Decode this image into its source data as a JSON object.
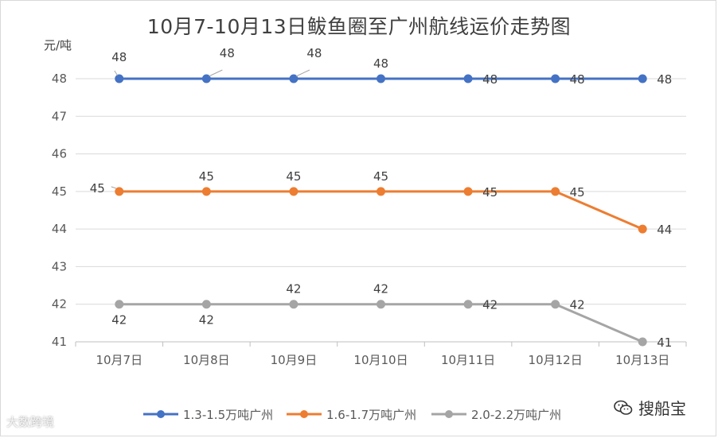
{
  "chart_data": {
    "type": "line",
    "title": "10月7-10月13日鲅鱼圈至广州航线运价走势图",
    "ylabel": "元/吨",
    "xlabel": "",
    "categories": [
      "10月7日",
      "10月8日",
      "10月9日",
      "10月10日",
      "10月11日",
      "10月12日",
      "10月13日"
    ],
    "ylim": [
      41,
      48
    ],
    "yticks": [
      41,
      42,
      43,
      44,
      45,
      46,
      47,
      48
    ],
    "grid": "horizontal",
    "legend": "bottom",
    "series": [
      {
        "name": "1.3-1.5万吨广州",
        "color": "#4472c4",
        "values": [
          48,
          48,
          48,
          48,
          48,
          48,
          48
        ]
      },
      {
        "name": "1.6-1.7万吨广州",
        "color": "#ed7d31",
        "values": [
          45,
          45,
          45,
          45,
          45,
          45,
          44
        ]
      },
      {
        "name": "2.0-2.2万吨广州",
        "color": "#a5a5a5",
        "values": [
          42,
          42,
          42,
          42,
          42,
          42,
          41
        ]
      }
    ]
  },
  "watermarks": {
    "left": "大数跨境",
    "right": "搜船宝"
  }
}
